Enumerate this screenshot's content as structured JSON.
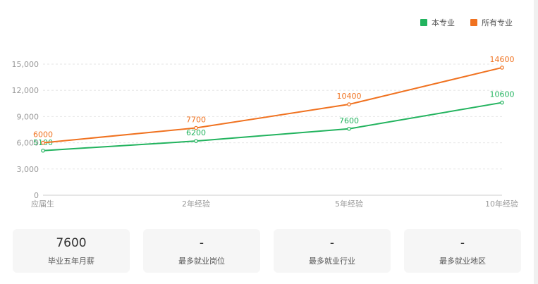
{
  "colors": {
    "series_major": "#22b35e",
    "series_all": "#f07220",
    "grid": "#e6e6e6",
    "axis_text": "#999999"
  },
  "legend": {
    "major_label": "本专业",
    "all_label": "所有专业"
  },
  "chart_data": {
    "type": "line",
    "categories": [
      "应届生",
      "2年经验",
      "5年经验",
      "10年经验"
    ],
    "series": [
      {
        "name": "本专业",
        "values": [
          5100,
          6200,
          7600,
          10600
        ]
      },
      {
        "name": "所有专业",
        "values": [
          6000,
          7700,
          10400,
          14600
        ]
      }
    ],
    "ylim": [
      0,
      15000
    ],
    "yticks": [
      0,
      3000,
      6000,
      9000,
      12000,
      15000
    ],
    "ytick_labels": [
      "0",
      "3,000",
      "6,000",
      "9,000",
      "12,000",
      "15,000"
    ],
    "grid": true,
    "legend_position": "top-right"
  },
  "cards": [
    {
      "value": "7600",
      "label": "毕业五年月薪"
    },
    {
      "value": "-",
      "label": "最多就业岗位"
    },
    {
      "value": "-",
      "label": "最多就业行业"
    },
    {
      "value": "-",
      "label": "最多就业地区"
    }
  ]
}
